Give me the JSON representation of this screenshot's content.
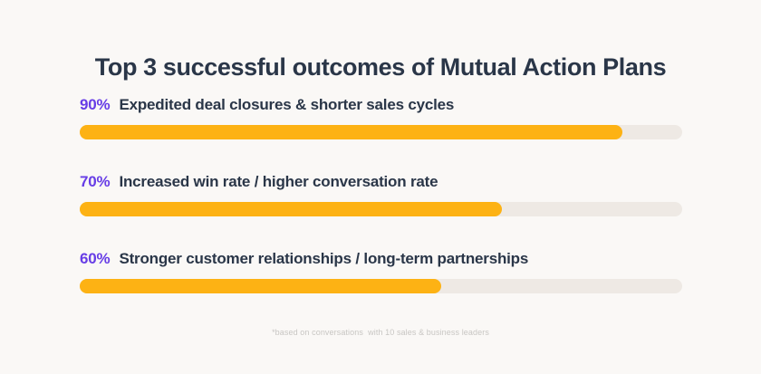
{
  "title": "Top 3 successful outcomes of Mutual Action Plans",
  "rows": [
    {
      "percent": "90%",
      "label": "Expedited deal closures & shorter sales cycles"
    },
    {
      "percent": "70%",
      "label": "Increased win rate / higher conversation rate"
    },
    {
      "percent": "60%",
      "label": "Stronger customer relationships / long-term partnerships"
    }
  ],
  "footnote": "*based on conversations  with 10 sales & business leaders",
  "colors": {
    "background": "#FAF8F6",
    "heading_text": "#2A3648",
    "percent_accent": "#673DE6",
    "bar_fill": "#FDB214",
    "bar_track": "#EEE9E4",
    "footnote_text": "#C8C6C3"
  },
  "chart_data": {
    "type": "bar",
    "orientation": "horizontal",
    "title": "Top 3 successful outcomes of Mutual Action Plans",
    "categories": [
      "Expedited deal closures & shorter sales cycles",
      "Increased win rate / higher conversation rate",
      "Stronger customer relationships / long-term partnerships"
    ],
    "values": [
      90,
      70,
      60
    ],
    "unit": "%",
    "xlim": [
      0,
      100
    ],
    "grid": false,
    "legend": false,
    "data_label_position": "left-of-category",
    "annotations": [
      "*based on conversations  with 10 sales & business leaders"
    ]
  }
}
